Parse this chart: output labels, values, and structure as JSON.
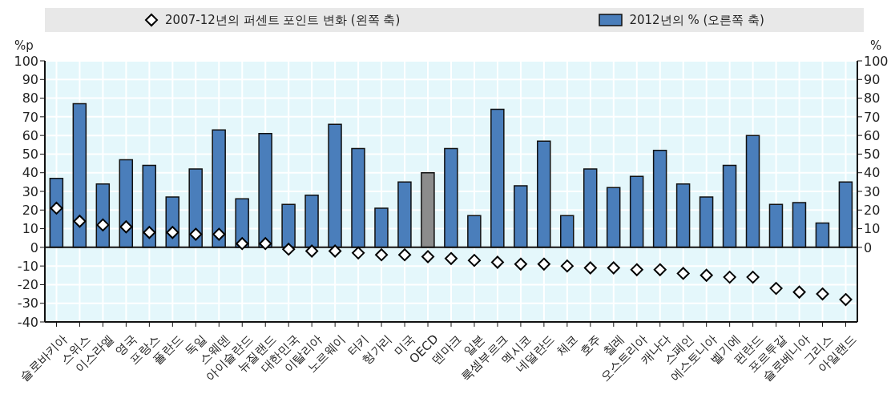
{
  "chart_data": {
    "type": "bar",
    "ylabel": "%p",
    "y2label": "%",
    "categories": [
      "슬로바키아",
      "스위스",
      "이스라엘",
      "영국",
      "프랑스",
      "폴란드",
      "독일",
      "스웨덴",
      "아이슬란드",
      "뉴질랜드",
      "대한민국",
      "이탈리아",
      "노르웨이",
      "터키",
      "헝가리",
      "미국",
      "OECD",
      "덴마크",
      "일본",
      "룩셈부르크",
      "멕시코",
      "네덜란드",
      "체코",
      "호주",
      "칠레",
      "오스트리아",
      "캐나다",
      "스페인",
      "에스토니아",
      "벨기에",
      "핀란드",
      "포르투갈",
      "슬로베니아",
      "그리스",
      "아일랜드"
    ],
    "series": [
      {
        "name": "2007-12년의 퍼센트 포인트 변화 (왼쪽 축)",
        "type": "scatter",
        "color": "#000000",
        "values": [
          21,
          14,
          12,
          11,
          8,
          8,
          7,
          7,
          2,
          2,
          -1,
          -2,
          -2,
          -3,
          -4,
          -4,
          -5,
          -6,
          -7,
          -8,
          -9,
          -9,
          -10,
          -11,
          -11,
          -12,
          -12,
          -14,
          -15,
          -16,
          -16,
          -22,
          -24,
          -25,
          -28
        ]
      },
      {
        "name": "2012년의 % (오른쪽 축)",
        "axis": "y2",
        "color": "#4a7ebb",
        "colors": [
          "#4a7ebb",
          "#4a7ebb",
          "#4a7ebb",
          "#4a7ebb",
          "#4a7ebb",
          "#4a7ebb",
          "#4a7ebb",
          "#4a7ebb",
          "#4a7ebb",
          "#4a7ebb",
          "#4a7ebb",
          "#4a7ebb",
          "#4a7ebb",
          "#4a7ebb",
          "#4a7ebb",
          "#4a7ebb",
          "#8c8c8c",
          "#4a7ebb",
          "#4a7ebb",
          "#4a7ebb",
          "#4a7ebb",
          "#4a7ebb",
          "#4a7ebb",
          "#4a7ebb",
          "#4a7ebb",
          "#4a7ebb",
          "#4a7ebb",
          "#4a7ebb",
          "#4a7ebb",
          "#4a7ebb",
          "#4a7ebb",
          "#4a7ebb",
          "#4a7ebb",
          "#4a7ebb",
          "#4a7ebb"
        ],
        "values": [
          37,
          77,
          34,
          47,
          44,
          27,
          42,
          63,
          26,
          61,
          23,
          28,
          66,
          53,
          21,
          35,
          40,
          53,
          17,
          74,
          33,
          57,
          17,
          42,
          32,
          38,
          52,
          34,
          27,
          44,
          60,
          23,
          24,
          13,
          35
        ]
      }
    ],
    "ylim": [
      -40,
      100
    ],
    "yticks": [
      -40,
      -30,
      -20,
      -10,
      0,
      10,
      20,
      30,
      40,
      50,
      60,
      70,
      80,
      90,
      100
    ],
    "y2lim": [
      -40,
      100
    ],
    "y2ticks": [
      0,
      10,
      20,
      30,
      40,
      50,
      60,
      70,
      80,
      90,
      100
    ],
    "grid": true,
    "legend": "top",
    "marker": "diamond"
  }
}
